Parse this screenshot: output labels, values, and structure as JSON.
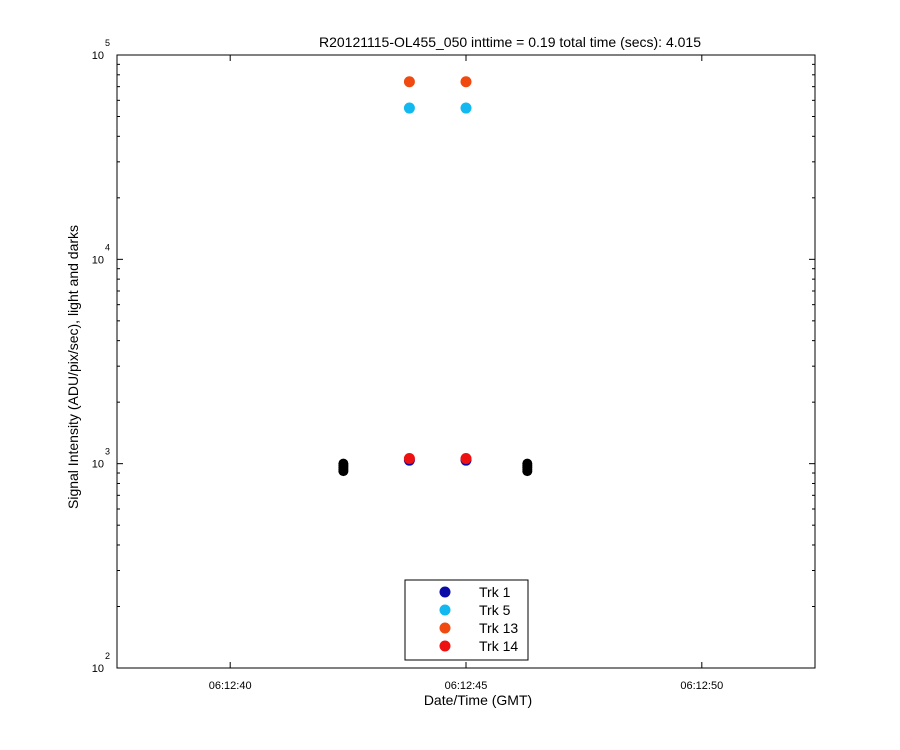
{
  "chart_data": {
    "type": "scatter",
    "title": "R20121115-OL455_050 inttime = 0.19 total time (secs): 4.015",
    "xlabel": "Date/Time (GMT)",
    "ylabel": "Signal Intensity (ADU/pix/sec), light and darks",
    "x_tick_labels": [
      "06:12:40",
      "06:12:45",
      "06:12:50"
    ],
    "x_tick_values": [
      40,
      45,
      50
    ],
    "xlim": [
      37.6,
      52.4
    ],
    "x_units": "seconds past 06:12:00",
    "y_scale": "log",
    "ylim": [
      100,
      100000
    ],
    "y_ticks": [
      {
        "value": 100,
        "base": "10",
        "exp": "2"
      },
      {
        "value": 1000,
        "base": "10",
        "exp": "3"
      },
      {
        "value": 10000,
        "base": "10",
        "exp": "4"
      },
      {
        "value": 100000,
        "base": "10",
        "exp": "5"
      }
    ],
    "grid": false,
    "legend_position": "bottom-center",
    "series": [
      {
        "name": "Trk 1",
        "color": "#0a0aa8",
        "x": [
          43.8,
          45.0
        ],
        "y": [
          1040,
          1040
        ]
      },
      {
        "name": "Trk 5",
        "color": "#12b8f0",
        "x": [
          43.8,
          45.0
        ],
        "y": [
          55000,
          55000
        ]
      },
      {
        "name": "Trk 13",
        "color": "#f04a10",
        "x": [
          43.8,
          45.0
        ],
        "y": [
          74000,
          74000
        ]
      },
      {
        "name": "Trk 14",
        "color": "#ee1111",
        "x": [
          43.8,
          45.0
        ],
        "y": [
          1060,
          1060
        ]
      }
    ],
    "dark_series": {
      "color": "#000000",
      "x": [
        42.4,
        42.4,
        42.4,
        42.4,
        42.4,
        46.3,
        46.3,
        46.3,
        46.3,
        46.3
      ],
      "y": [
        920,
        940,
        960,
        980,
        1000,
        920,
        940,
        960,
        980,
        1000
      ]
    }
  }
}
